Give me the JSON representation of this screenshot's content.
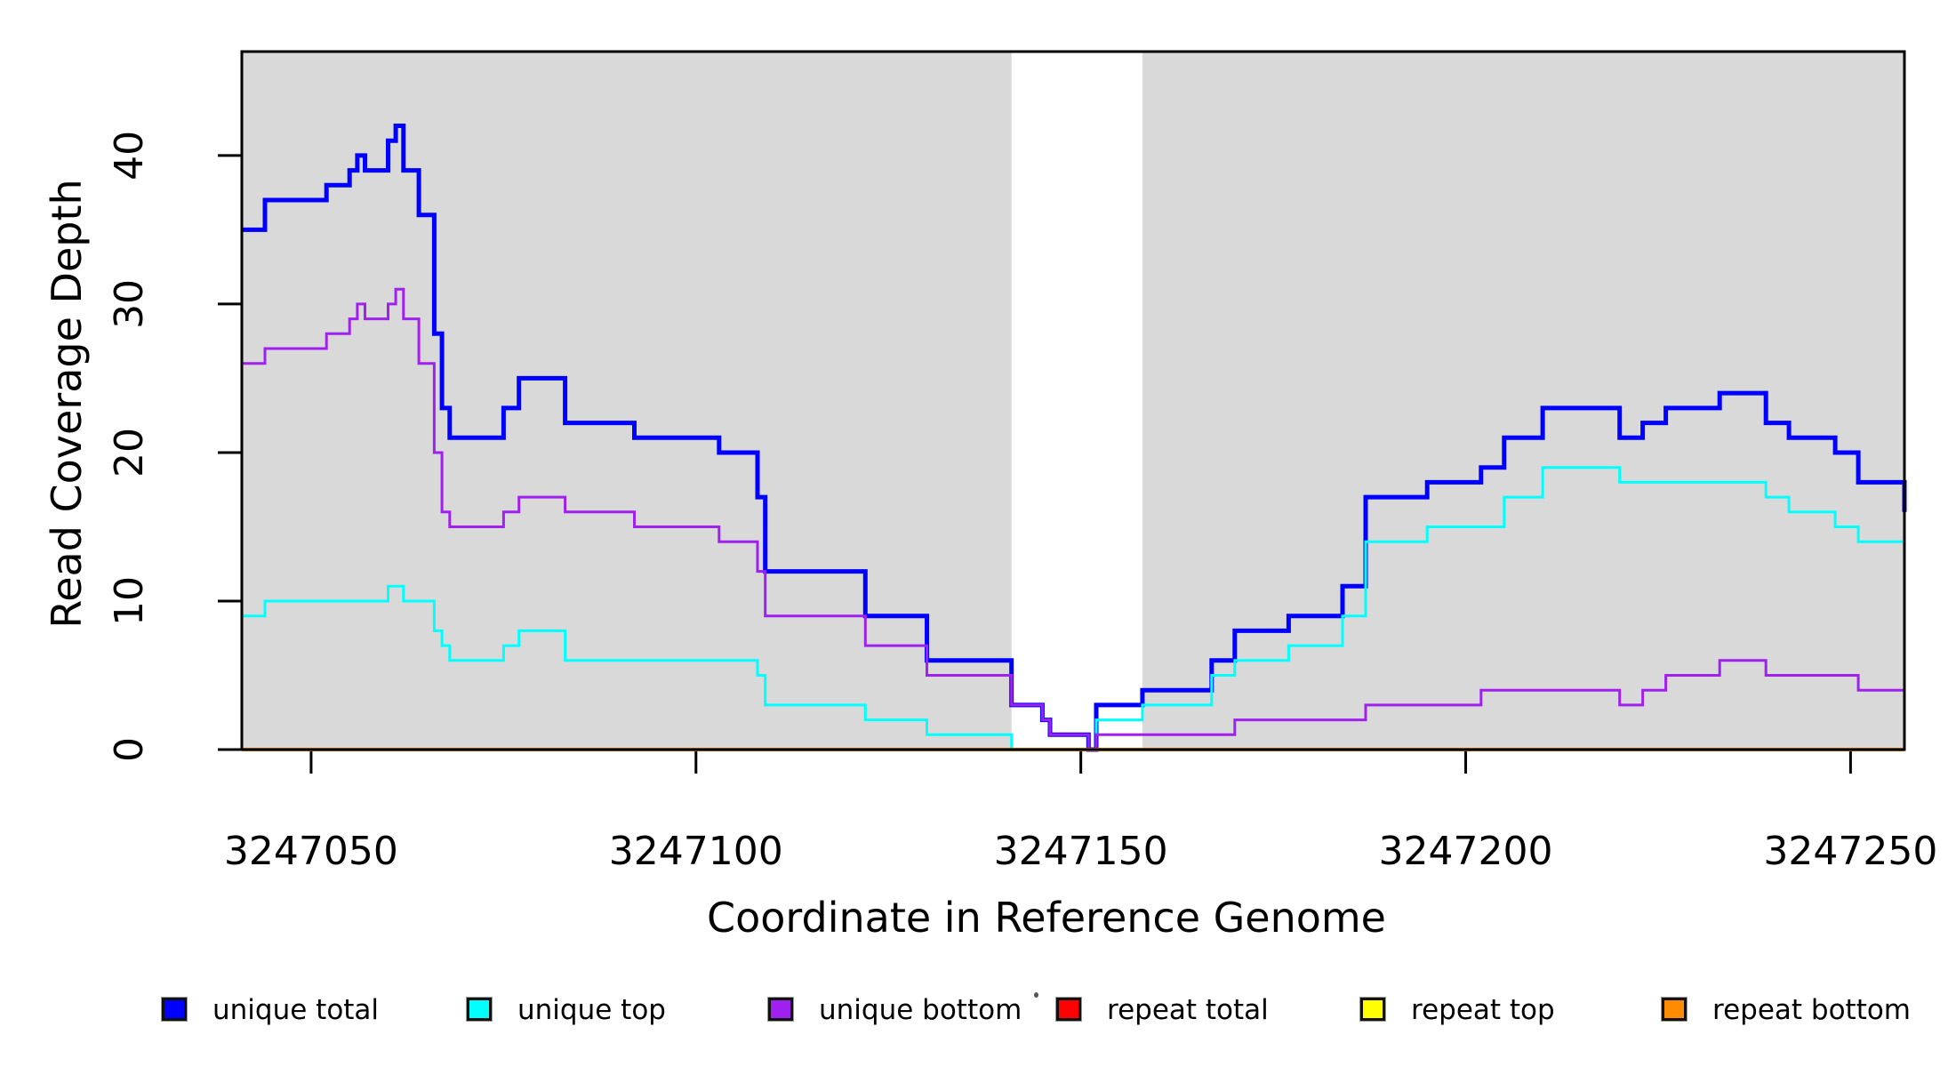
{
  "chart_data": {
    "type": "line",
    "subtype": "step-post",
    "title": "",
    "xlabel": "Coordinate in Reference Genome",
    "ylabel": "Read Coverage Depth",
    "xlim": [
      3247041,
      3247257
    ],
    "ylim": [
      0,
      47
    ],
    "x_ticks": [
      3247050,
      3247100,
      3247150,
      3247200,
      3247250
    ],
    "y_ticks": [
      0,
      10,
      20,
      30,
      40
    ],
    "grid": false,
    "plot_background_color": "#ffffff",
    "shaded_bands": [
      {
        "x0": 3247041,
        "x1": 3247141,
        "color": "#D9D9D9"
      },
      {
        "x0": 3247158,
        "x1": 3247257,
        "color": "#D9D9D9"
      }
    ],
    "series": [
      {
        "name": "unique total",
        "color": "#0000FF",
        "line_width": 5,
        "points": [
          [
            3247041,
            35
          ],
          [
            3247044,
            37
          ],
          [
            3247052,
            38
          ],
          [
            3247055,
            39
          ],
          [
            3247056,
            40
          ],
          [
            3247057,
            39
          ],
          [
            3247060,
            41
          ],
          [
            3247061,
            42
          ],
          [
            3247062,
            39
          ],
          [
            3247064,
            36
          ],
          [
            3247066,
            28
          ],
          [
            3247067,
            23
          ],
          [
            3247068,
            21
          ],
          [
            3247075,
            23
          ],
          [
            3247077,
            25
          ],
          [
            3247083,
            22
          ],
          [
            3247092,
            21
          ],
          [
            3247103,
            20
          ],
          [
            3247108,
            17
          ],
          [
            3247109,
            12
          ],
          [
            3247122,
            9
          ],
          [
            3247130,
            6
          ],
          [
            3247141,
            3
          ],
          [
            3247145,
            2
          ],
          [
            3247146,
            1
          ],
          [
            3247151,
            0
          ],
          [
            3247152,
            3
          ],
          [
            3247158,
            4
          ],
          [
            3247167,
            6
          ],
          [
            3247170,
            8
          ],
          [
            3247177,
            9
          ],
          [
            3247184,
            11
          ],
          [
            3247187,
            17
          ],
          [
            3247195,
            18
          ],
          [
            3247202,
            19
          ],
          [
            3247205,
            21
          ],
          [
            3247210,
            23
          ],
          [
            3247220,
            21
          ],
          [
            3247223,
            22
          ],
          [
            3247226,
            23
          ],
          [
            3247233,
            24
          ],
          [
            3247239,
            22
          ],
          [
            3247242,
            21
          ],
          [
            3247248,
            20
          ],
          [
            3247251,
            18
          ]
        ],
        "end_value": 16
      },
      {
        "name": "unique top",
        "color": "#00FFFF",
        "line_width": 3,
        "points": [
          [
            3247041,
            9
          ],
          [
            3247044,
            10
          ],
          [
            3247060,
            11
          ],
          [
            3247062,
            10
          ],
          [
            3247066,
            8
          ],
          [
            3247067,
            7
          ],
          [
            3247068,
            6
          ],
          [
            3247075,
            7
          ],
          [
            3247077,
            8
          ],
          [
            3247083,
            6
          ],
          [
            3247108,
            5
          ],
          [
            3247109,
            3
          ],
          [
            3247122,
            2
          ],
          [
            3247130,
            1
          ],
          [
            3247141,
            0
          ],
          [
            3247152,
            2
          ],
          [
            3247158,
            3
          ],
          [
            3247167,
            5
          ],
          [
            3247170,
            6
          ],
          [
            3247177,
            7
          ],
          [
            3247184,
            9
          ],
          [
            3247187,
            14
          ],
          [
            3247195,
            15
          ],
          [
            3247205,
            17
          ],
          [
            3247210,
            19
          ],
          [
            3247220,
            18
          ],
          [
            3247239,
            17
          ],
          [
            3247242,
            16
          ],
          [
            3247248,
            15
          ],
          [
            3247251,
            14
          ]
        ],
        "end_value": 12
      },
      {
        "name": "unique bottom",
        "color": "#A020F0",
        "line_width": 3,
        "points": [
          [
            3247041,
            26
          ],
          [
            3247044,
            27
          ],
          [
            3247052,
            28
          ],
          [
            3247055,
            29
          ],
          [
            3247056,
            30
          ],
          [
            3247057,
            29
          ],
          [
            3247060,
            30
          ],
          [
            3247061,
            31
          ],
          [
            3247062,
            29
          ],
          [
            3247064,
            26
          ],
          [
            3247066,
            20
          ],
          [
            3247067,
            16
          ],
          [
            3247068,
            15
          ],
          [
            3247075,
            16
          ],
          [
            3247077,
            17
          ],
          [
            3247083,
            16
          ],
          [
            3247092,
            15
          ],
          [
            3247103,
            14
          ],
          [
            3247108,
            12
          ],
          [
            3247109,
            9
          ],
          [
            3247122,
            7
          ],
          [
            3247130,
            5
          ],
          [
            3247141,
            3
          ],
          [
            3247145,
            2
          ],
          [
            3247146,
            1
          ],
          [
            3247151,
            0
          ],
          [
            3247152,
            1
          ],
          [
            3247170,
            2
          ],
          [
            3247187,
            3
          ],
          [
            3247202,
            4
          ],
          [
            3247220,
            3
          ],
          [
            3247223,
            4
          ],
          [
            3247226,
            5
          ],
          [
            3247233,
            6
          ],
          [
            3247239,
            5
          ],
          [
            3247251,
            4
          ]
        ],
        "end_value": 4
      },
      {
        "name": "repeat total",
        "color": "#FF0000",
        "line_width": 3,
        "points": [
          [
            3247041,
            0
          ]
        ],
        "end_value": 0
      },
      {
        "name": "repeat top",
        "color": "#FFFF00",
        "line_width": 3,
        "points": [
          [
            3247041,
            0
          ]
        ],
        "end_value": 0
      },
      {
        "name": "repeat bottom",
        "color": "#FF8C00",
        "line_width": 4,
        "points": [
          [
            3247041,
            0
          ]
        ],
        "end_value": 0
      }
    ],
    "legend": {
      "position": "bottom",
      "items": [
        {
          "label": "unique total",
          "color": "#0000FF"
        },
        {
          "label": "unique top",
          "color": "#00FFFF"
        },
        {
          "label": "unique bottom",
          "color": "#A020F0"
        },
        {
          "label": "repeat total",
          "color": "#FF0000"
        },
        {
          "label": "repeat top",
          "color": "#FFFF00"
        },
        {
          "label": "repeat bottom",
          "color": "#FF8C00"
        }
      ]
    },
    "annotations": [
      {
        "type": "stray-dot",
        "note": "small dark speck left of repeat total swatch"
      }
    ]
  }
}
